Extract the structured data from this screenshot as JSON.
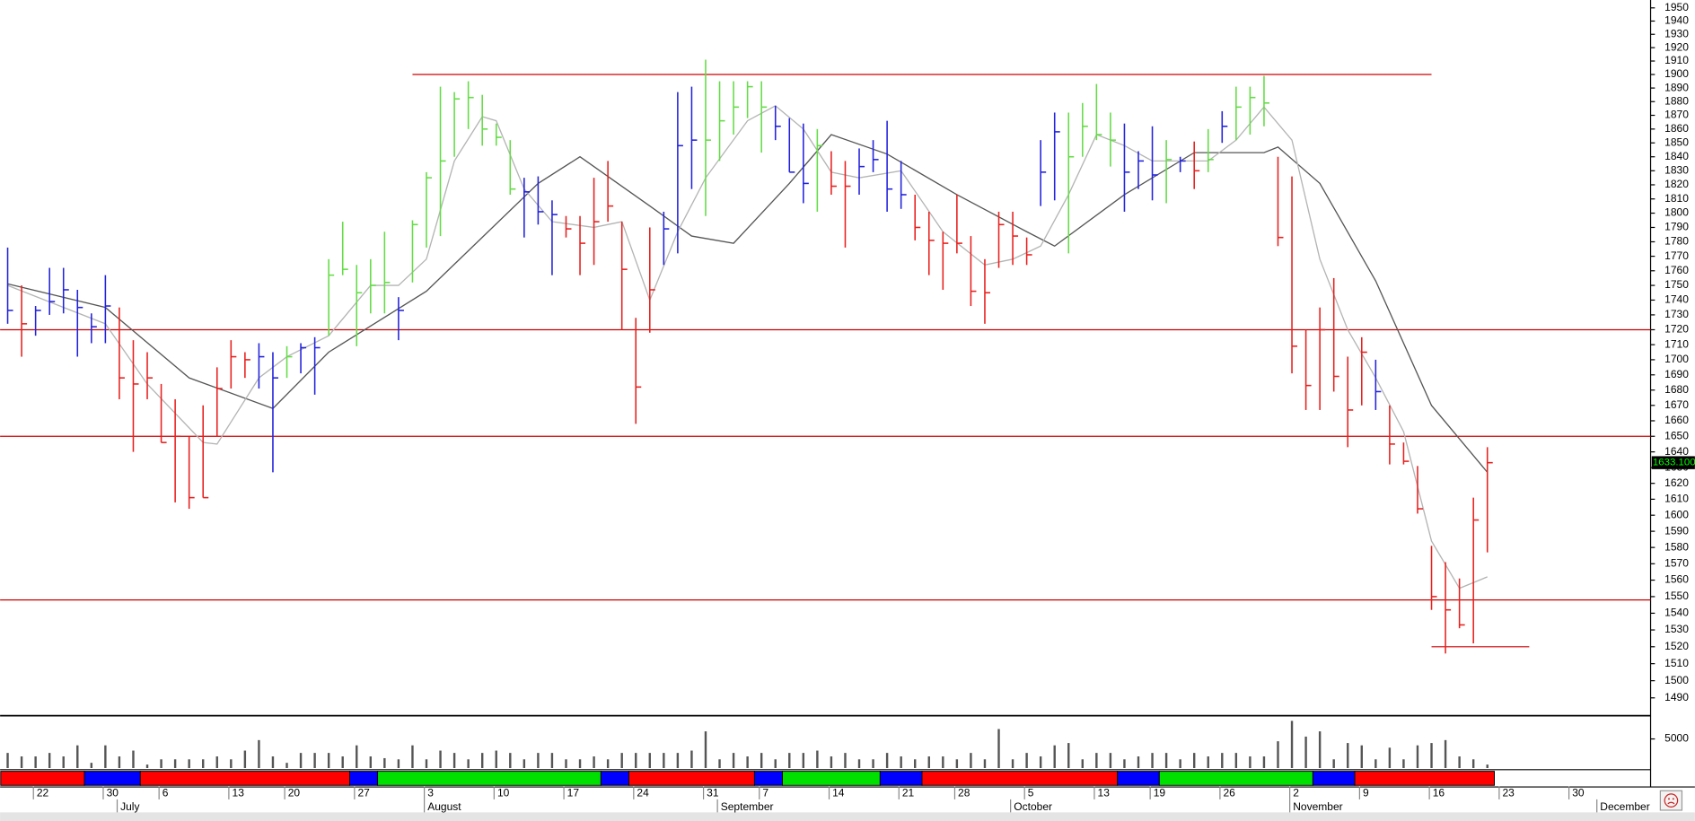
{
  "chart_data": {
    "type": "ohlc",
    "log": true,
    "ylim": [
      1480,
      1956
    ],
    "yticks": [
      1490,
      1500,
      1510,
      1520,
      1530,
      1540,
      1550,
      1560,
      1570,
      1580,
      1590,
      1600,
      1610,
      1620,
      1630,
      1640,
      1650,
      1660,
      1670,
      1680,
      1690,
      1700,
      1710,
      1720,
      1730,
      1740,
      1750,
      1760,
      1770,
      1780,
      1790,
      1800,
      1810,
      1820,
      1830,
      1840,
      1850,
      1860,
      1870,
      1880,
      1890,
      1900,
      1910,
      1920,
      1930,
      1940,
      1950
    ],
    "xlim": [
      -0.5,
      117.5
    ],
    "xticks": [
      {
        "value": 2,
        "label": "22"
      },
      {
        "value": 7,
        "label": "30"
      },
      {
        "value": 11,
        "label": "6"
      },
      {
        "value": 16,
        "label": "13"
      },
      {
        "value": 20,
        "label": "20"
      },
      {
        "value": 25,
        "label": "27"
      },
      {
        "value": 30,
        "label": "3"
      },
      {
        "value": 35,
        "label": "10"
      },
      {
        "value": 40,
        "label": "17"
      },
      {
        "value": 45,
        "label": "24"
      },
      {
        "value": 50,
        "label": "31"
      },
      {
        "value": 54,
        "label": "7"
      },
      {
        "value": 59,
        "label": "14"
      },
      {
        "value": 64,
        "label": "21"
      },
      {
        "value": 68,
        "label": "28"
      },
      {
        "value": 73,
        "label": "5"
      },
      {
        "value": 78,
        "label": "13"
      },
      {
        "value": 82,
        "label": "19"
      },
      {
        "value": 87,
        "label": "26"
      },
      {
        "value": 92,
        "label": "2"
      },
      {
        "value": 97,
        "label": "9"
      },
      {
        "value": 102,
        "label": "16"
      },
      {
        "value": 107,
        "label": "23"
      },
      {
        "value": 112,
        "label": "30"
      }
    ],
    "month_ticks": [
      {
        "value": 8,
        "label": "July"
      },
      {
        "value": 30,
        "label": "August"
      },
      {
        "value": 51,
        "label": "September"
      },
      {
        "value": 72,
        "label": "October"
      },
      {
        "value": 92,
        "label": "November"
      },
      {
        "value": 114,
        "label": "December"
      }
    ],
    "bars": {
      "high": [
        1776,
        1750,
        1736,
        1762,
        1762,
        1747,
        1731,
        1757,
        1735,
        1713,
        1705,
        1684,
        1674,
        1650,
        1670,
        1695,
        1713,
        1705,
        1711,
        1705,
        1709,
        1711,
        1715,
        1768,
        1794,
        1764,
        1768,
        1787,
        1742,
        1795,
        1829,
        1891,
        1887,
        1895,
        1885,
        1864,
        1852,
        1825,
        1826,
        1809,
        1798,
        1798,
        1825,
        1837,
        1794,
        1728,
        1790,
        1801,
        1887,
        1891,
        1911,
        1895,
        1895,
        1895,
        1895,
        1877,
        1868,
        1864,
        1860,
        1844,
        1837,
        1846,
        1852,
        1866,
        1837,
        1813,
        1801,
        1787,
        1813,
        1784,
        1768,
        1801,
        1801,
        1783,
        1852,
        1872,
        1872,
        1879,
        1893,
        1872,
        1864,
        1844,
        1862,
        1852,
        1840,
        1851,
        1860,
        1873,
        1891,
        1891,
        1899,
        1840,
        1826,
        1720,
        1735,
        1755,
        1702,
        1715,
        1700,
        1670,
        1646,
        1631,
        1581,
        1571,
        1561,
        1611,
        1643
      ],
      "low": [
        1724,
        1702,
        1716,
        1730,
        1731,
        1702,
        1711,
        1711,
        1674,
        1640,
        1674,
        1646,
        1608,
        1604,
        1611,
        1650,
        1681,
        1688,
        1681,
        1627,
        1688,
        1691,
        1677,
        1716,
        1757,
        1709,
        1731,
        1731,
        1713,
        1752,
        1776,
        1784,
        1840,
        1860,
        1848,
        1848,
        1813,
        1783,
        1792,
        1757,
        1783,
        1757,
        1764,
        1794,
        1720,
        1658,
        1718,
        1764,
        1772,
        1817,
        1798,
        1837,
        1856,
        1868,
        1843,
        1852,
        1829,
        1807,
        1801,
        1813,
        1776,
        1813,
        1829,
        1801,
        1803,
        1781,
        1757,
        1747,
        1772,
        1736,
        1724,
        1762,
        1764,
        1764,
        1805,
        1809,
        1772,
        1840,
        1852,
        1833,
        1801,
        1817,
        1809,
        1807,
        1829,
        1817,
        1829,
        1850,
        1852,
        1856,
        1862,
        1777,
        1691,
        1667,
        1667,
        1679,
        1643,
        1670,
        1667,
        1632,
        1632,
        1601,
        1542,
        1516,
        1531,
        1522,
        1577
      ],
      "close": [
        1733,
        1724,
        1733,
        1739,
        1747,
        1735,
        1722,
        1736,
        1688,
        1684,
        1688,
        1646,
        1650,
        1611,
        1611,
        1681,
        1702,
        1700,
        1702,
        1688,
        1702,
        1708,
        1708,
        1757,
        1761,
        1745,
        1750,
        1752,
        1733,
        1792,
        1825,
        1837,
        1882,
        1883,
        1860,
        1854,
        1817,
        1815,
        1801,
        1799,
        1789,
        1779,
        1794,
        1805,
        1761,
        1682,
        1747,
        1789,
        1848,
        1852,
        1852,
        1866,
        1876,
        1891,
        1876,
        1862,
        1829,
        1821,
        1848,
        1819,
        1819,
        1833,
        1838,
        1817,
        1813,
        1790,
        1781,
        1779,
        1779,
        1746,
        1745,
        1792,
        1784,
        1771,
        1829,
        1858,
        1840,
        1862,
        1856,
        1852,
        1829,
        1837,
        1827,
        1838,
        1837,
        1830,
        1838,
        1862,
        1876,
        1883,
        1879,
        1783,
        1709,
        1683,
        1720,
        1689,
        1667,
        1705,
        1679,
        1645,
        1634,
        1604,
        1550,
        1542,
        1533,
        1597,
        1633.1
      ],
      "colors": [
        "#2222dd",
        "#e8201e",
        "#2222dd",
        "#2222dd",
        "#2222dd",
        "#2222dd",
        "#2222dd",
        "#2222dd",
        "#e8201e",
        "#e8201e",
        "#e8201e",
        "#e8201e",
        "#e8201e",
        "#e8201e",
        "#e8201e",
        "#e8201e",
        "#e8201e",
        "#e8201e",
        "#2222dd",
        "#2222dd",
        "#64dc46",
        "#2222dd",
        "#2222dd",
        "#64dc46",
        "#64dc46",
        "#64dc46",
        "#64dc46",
        "#64dc46",
        "#2222dd",
        "#64dc46",
        "#64dc46",
        "#64dc46",
        "#64dc46",
        "#64dc46",
        "#64dc46",
        "#64dc46",
        "#64dc46",
        "#2222dd",
        "#2222dd",
        "#2222dd",
        "#e8201e",
        "#e8201e",
        "#e8201e",
        "#e8201e",
        "#e8201e",
        "#e8201e",
        "#e8201e",
        "#2222dd",
        "#2222dd",
        "#2222dd",
        "#64dc46",
        "#64dc46",
        "#64dc46",
        "#64dc46",
        "#64dc46",
        "#2222dd",
        "#2222dd",
        "#2222dd",
        "#64dc46",
        "#e8201e",
        "#e8201e",
        "#2222dd",
        "#2222dd",
        "#2222dd",
        "#2222dd",
        "#e8201e",
        "#e8201e",
        "#e8201e",
        "#e8201e",
        "#e8201e",
        "#e8201e",
        "#e8201e",
        "#e8201e",
        "#e8201e",
        "#2222dd",
        "#2222dd",
        "#64dc46",
        "#64dc46",
        "#64dc46",
        "#64dc46",
        "#2222dd",
        "#2222dd",
        "#2222dd",
        "#64dc46",
        "#2222dd",
        "#e8201e",
        "#64dc46",
        "#2222dd",
        "#64dc46",
        "#64dc46",
        "#64dc46",
        "#e8201e",
        "#e8201e",
        "#e8201e",
        "#e8201e",
        "#e8201e",
        "#e8201e",
        "#e8201e",
        "#2222dd",
        "#e8201e",
        "#e8201e",
        "#e8201e",
        "#e8201e",
        "#e8201e",
        "#e8201e",
        "#e8201e",
        "#e8201e"
      ]
    },
    "ma": [
      {
        "color": "#555555",
        "x": [
          0,
          7,
          13,
          19,
          23,
          30,
          38,
          41,
          46,
          49,
          52,
          56,
          59,
          63,
          68,
          73,
          75,
          80,
          85,
          90,
          91,
          94,
          98,
          102,
          106
        ],
        "values": [
          1751,
          1735,
          1688,
          1668,
          1705,
          1746,
          1821,
          1840,
          1805,
          1784,
          1779,
          1821,
          1856,
          1842,
          1813,
          1787,
          1777,
          1813,
          1843,
          1843,
          1847,
          1821,
          1753,
          1670,
          1627
        ]
      },
      {
        "color": "#b4b4b4",
        "x": [
          0,
          4,
          7,
          10,
          14,
          15,
          18,
          20,
          23,
          26,
          28,
          30,
          32,
          34,
          35,
          37,
          39,
          42,
          44,
          46,
          48,
          50,
          53,
          55,
          57,
          59,
          61,
          64,
          67,
          70,
          72,
          74,
          76,
          78,
          80,
          82,
          86,
          88,
          90,
          92,
          94,
          96,
          98,
          100,
          102,
          104,
          106
        ],
        "values": [
          1750,
          1735,
          1724,
          1684,
          1646,
          1645,
          1688,
          1702,
          1716,
          1750,
          1750,
          1768,
          1837,
          1869,
          1866,
          1817,
          1794,
          1790,
          1794,
          1740,
          1787,
          1825,
          1866,
          1877,
          1860,
          1829,
          1825,
          1830,
          1787,
          1764,
          1768,
          1777,
          1813,
          1856,
          1848,
          1837,
          1837,
          1852,
          1876,
          1852,
          1768,
          1720,
          1688,
          1653,
          1584,
          1555,
          1562
        ]
      }
    ],
    "levels": [
      {
        "value": 1900,
        "from": 29,
        "to": 102
      },
      {
        "value": 1720
      },
      {
        "value": 1650
      },
      {
        "value": 1548
      },
      {
        "value": 1520,
        "from": 102,
        "to": 109
      }
    ],
    "level_color": "#cc0000",
    "last_price": {
      "value": 1633.1,
      "label": "1633.100"
    },
    "volume": {
      "color": "#555555",
      "ylim": [
        0,
        8900
      ],
      "yticks": [
        5000
      ],
      "values": [
        2600,
        2000,
        2000,
        2600,
        2000,
        3900,
        900,
        3900,
        2000,
        3000,
        600,
        1500,
        1500,
        1500,
        1500,
        2000,
        1500,
        3000,
        4800,
        2000,
        900,
        2600,
        2600,
        2600,
        2000,
        3900,
        2000,
        1700,
        1500,
        3900,
        1500,
        3000,
        2600,
        1500,
        2600,
        3000,
        2600,
        1500,
        2600,
        2600,
        1500,
        1500,
        2000,
        1500,
        2600,
        2600,
        2600,
        2600,
        2600,
        3000,
        6300,
        1500,
        2600,
        2000,
        2600,
        1500,
        2600,
        2600,
        3000,
        2000,
        2600,
        1500,
        1500,
        2600,
        2000,
        1500,
        2000,
        2000,
        1500,
        2600,
        1500,
        6700,
        1500,
        2600,
        2000,
        3900,
        4300,
        1500,
        2600,
        2600,
        1500,
        2000,
        2600,
        2600,
        1500,
        2600,
        2000,
        2600,
        2600,
        2000,
        2000,
        4600,
        8100,
        5400,
        6300,
        1500,
        4300,
        3900,
        1500,
        3500,
        1500,
        3900,
        4300,
        4800,
        2000,
        1500,
        600
      ]
    },
    "trend_segments": [
      {
        "from": 0,
        "to": 6,
        "color": "#ff0000"
      },
      {
        "from": 6,
        "to": 10,
        "color": "#0000ff"
      },
      {
        "from": 10,
        "to": 25,
        "color": "#ff0000"
      },
      {
        "from": 25,
        "to": 27,
        "color": "#0000ff"
      },
      {
        "from": 27,
        "to": 43,
        "color": "#00e000"
      },
      {
        "from": 43,
        "to": 45,
        "color": "#0000ff"
      },
      {
        "from": 45,
        "to": 54,
        "color": "#ff0000"
      },
      {
        "from": 54,
        "to": 56,
        "color": "#0000ff"
      },
      {
        "from": 56,
        "to": 63,
        "color": "#00e000"
      },
      {
        "from": 63,
        "to": 66,
        "color": "#0000ff"
      },
      {
        "from": 66,
        "to": 80,
        "color": "#ff0000"
      },
      {
        "from": 80,
        "to": 83,
        "color": "#0000ff"
      },
      {
        "from": 83,
        "to": 94,
        "color": "#00e000"
      },
      {
        "from": 94,
        "to": 97,
        "color": "#0000ff"
      },
      {
        "from": 97,
        "to": 107,
        "color": "#ff0000"
      }
    ]
  }
}
